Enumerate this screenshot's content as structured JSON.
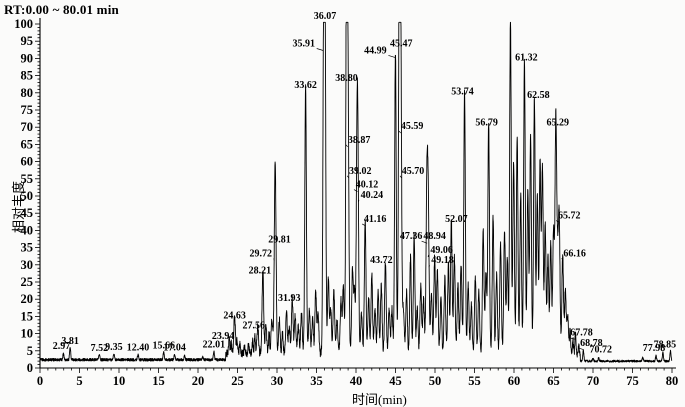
{
  "title": "RT:0.00 ~ 80.01 min",
  "x_axis": {
    "label": "时间(min)",
    "ticks": [
      0,
      5,
      10,
      15,
      20,
      25,
      30,
      35,
      40,
      45,
      50,
      55,
      60,
      65,
      70,
      75,
      80
    ]
  },
  "y_axis": {
    "label": "相对丰度",
    "ticks": [
      0,
      5,
      10,
      15,
      20,
      25,
      30,
      35,
      40,
      45,
      50,
      55,
      60,
      65,
      70,
      75,
      80,
      85,
      90,
      95,
      100
    ]
  },
  "colors": {
    "trace": "#000000",
    "text": "#000000",
    "background": "#fbfbfa"
  },
  "chart_data": {
    "type": "line",
    "title": "RT:0.00 ~ 80.01 min",
    "xlabel": "时间(min)",
    "ylabel": "相对丰度",
    "xlim": [
      0,
      80
    ],
    "ylim": [
      0,
      100
    ],
    "grid": false,
    "legend": false,
    "series_name": "total-ion-chromatogram",
    "labeled_peaks": [
      {
        "label": "2.97",
        "rt": 2.97,
        "h": 4,
        "dx": -2
      },
      {
        "label": "3.81",
        "rt": 3.81,
        "h": 5.5
      },
      {
        "label": "7.52",
        "rt": 7.52,
        "h": 3.5
      },
      {
        "label": "9.35",
        "rt": 9.35,
        "h": 3.8
      },
      {
        "label": "12.40",
        "rt": 12.4,
        "h": 3.6
      },
      {
        "label": "15.66",
        "rt": 15.66,
        "h": 4.2
      },
      {
        "label": "17.04",
        "rt": 17.04,
        "h": 3.6
      },
      {
        "label": "22.01",
        "rt": 22.01,
        "h": 4.5
      },
      {
        "label": "23.94",
        "rt": 23.94,
        "h": 7,
        "dx": -6
      },
      {
        "label": "24.63",
        "rt": 24.63,
        "h": 13
      },
      {
        "label": "27.56",
        "rt": 27.56,
        "h": 10,
        "dx": -4
      },
      {
        "label": "28.21",
        "rt": 28.21,
        "h": 26,
        "dx": -3
      },
      {
        "label": "29.72",
        "rt": 29.72,
        "h": 31,
        "dx": -14,
        "ld": 1
      },
      {
        "label": "29.81",
        "rt": 29.81,
        "h": 35,
        "dx": 4
      },
      {
        "label": "31.93",
        "rt": 31.93,
        "h": 18,
        "dx": -3
      },
      {
        "label": "33.62",
        "rt": 33.62,
        "h": 80
      },
      {
        "label": "35.91",
        "rt": 35.91,
        "h": 92,
        "dx": -20,
        "ld": 1
      },
      {
        "label": "36.07",
        "rt": 36.07,
        "h": 100
      },
      {
        "label": "38.80",
        "rt": 38.8,
        "h": 82
      },
      {
        "label": "38.87",
        "rt": 38.87,
        "h": 64,
        "dx": 12,
        "ld": 1
      },
      {
        "label": "39.02",
        "rt": 39.02,
        "h": 55,
        "dx": 12,
        "ld": 1
      },
      {
        "label": "40.12",
        "rt": 40.12,
        "h": 51,
        "dx": 10,
        "ld": 1
      },
      {
        "label": "40.24",
        "rt": 40.24,
        "h": 48,
        "dx": 14,
        "ld": 1
      },
      {
        "label": "41.16",
        "rt": 41.16,
        "h": 41,
        "dx": 10,
        "ld": 1
      },
      {
        "label": "43.72",
        "rt": 43.72,
        "h": 29,
        "dx": -4
      },
      {
        "label": "44.99",
        "rt": 44.99,
        "h": 90,
        "dx": -20,
        "ld": 1
      },
      {
        "label": "45.47",
        "rt": 45.47,
        "h": 92,
        "dx": 2
      },
      {
        "label": "45.59",
        "rt": 45.59,
        "h": 68,
        "dx": 12,
        "ld": 1
      },
      {
        "label": "45.70",
        "rt": 45.7,
        "h": 55,
        "dx": 12,
        "ld": 1
      },
      {
        "label": "47.36",
        "rt": 47.36,
        "h": 36,
        "dx": -3
      },
      {
        "label": "48.94",
        "rt": 48.94,
        "h": 36,
        "dx": 8,
        "ld": 1
      },
      {
        "label": "49.06",
        "rt": 49.06,
        "h": 32,
        "dx": 14,
        "ld": 1
      },
      {
        "label": "49.18",
        "rt": 49.18,
        "h": 29,
        "dx": 14,
        "ld": 1
      },
      {
        "label": "52.07",
        "rt": 52.07,
        "h": 41,
        "dx": 5
      },
      {
        "label": "53.74",
        "rt": 53.74,
        "h": 78,
        "dx": -2
      },
      {
        "label": "56.79",
        "rt": 56.79,
        "h": 69,
        "dx": -2
      },
      {
        "label": "61.32",
        "rt": 61.32,
        "h": 88,
        "dx": 2
      },
      {
        "label": "62.58",
        "rt": 62.58,
        "h": 77,
        "dx": 4
      },
      {
        "label": "65.29",
        "rt": 65.29,
        "h": 69,
        "dx": 2
      },
      {
        "label": "65.72",
        "rt": 65.72,
        "h": 42,
        "dx": 10,
        "ld": 1
      },
      {
        "label": "66.16",
        "rt": 66.16,
        "h": 31,
        "dx": 12,
        "ld": 1
      },
      {
        "label": "67.78",
        "rt": 67.78,
        "h": 8,
        "dx": 6,
        "ld": 1
      },
      {
        "label": "68.78",
        "rt": 68.78,
        "h": 5,
        "dx": 8,
        "ld": 1
      },
      {
        "label": "70.72",
        "rt": 70.72,
        "h": 3,
        "dx": 2
      },
      {
        "label": "77.98",
        "rt": 77.98,
        "h": 3.5,
        "dx": -2
      },
      {
        "label": "78.85",
        "rt": 78.85,
        "h": 4.5,
        "dx": 2
      }
    ],
    "unlabeled_peaks": [
      [
        18.3,
        3.2
      ],
      [
        20.6,
        2.8
      ],
      [
        24.2,
        5
      ],
      [
        24.95,
        6
      ],
      [
        25.3,
        5
      ],
      [
        25.9,
        4
      ],
      [
        26.4,
        5
      ],
      [
        26.9,
        6
      ],
      [
        27.2,
        7
      ],
      [
        28.6,
        10
      ],
      [
        29.0,
        8
      ],
      [
        29.35,
        12
      ],
      [
        30.3,
        12
      ],
      [
        30.7,
        9
      ],
      [
        31.2,
        14
      ],
      [
        31.55,
        10
      ],
      [
        32.3,
        13
      ],
      [
        32.7,
        10
      ],
      [
        33.1,
        14
      ],
      [
        34.1,
        15
      ],
      [
        34.5,
        12
      ],
      [
        34.9,
        20
      ],
      [
        35.2,
        14
      ],
      [
        36.5,
        24
      ],
      [
        36.8,
        15
      ],
      [
        37.2,
        20
      ],
      [
        37.6,
        12
      ],
      [
        38.1,
        18
      ],
      [
        38.4,
        22
      ],
      [
        39.55,
        26
      ],
      [
        39.8,
        20
      ],
      [
        40.7,
        14
      ],
      [
        41.6,
        18
      ],
      [
        42.0,
        25
      ],
      [
        42.4,
        15
      ],
      [
        42.8,
        20
      ],
      [
        43.2,
        22
      ],
      [
        44.2,
        15
      ],
      [
        44.55,
        15
      ],
      [
        46.0,
        15
      ],
      [
        46.4,
        20
      ],
      [
        46.9,
        30
      ],
      [
        47.75,
        15
      ],
      [
        48.2,
        22
      ],
      [
        48.55,
        18
      ],
      [
        49.55,
        20
      ],
      [
        49.95,
        30
      ],
      [
        50.3,
        26
      ],
      [
        50.75,
        18
      ],
      [
        51.25,
        24
      ],
      [
        51.7,
        28
      ],
      [
        52.45,
        30
      ],
      [
        52.9,
        22
      ],
      [
        53.3,
        28
      ],
      [
        54.2,
        22
      ],
      [
        54.6,
        16
      ],
      [
        55.1,
        24
      ],
      [
        55.55,
        20
      ],
      [
        56.1,
        38
      ],
      [
        56.45,
        25
      ],
      [
        57.35,
        42
      ],
      [
        57.8,
        25
      ],
      [
        58.3,
        34
      ],
      [
        58.8,
        38
      ],
      [
        59.15,
        30
      ],
      [
        59.55,
        100
      ],
      [
        59.95,
        58
      ],
      [
        60.4,
        65
      ],
      [
        60.85,
        48
      ],
      [
        61.75,
        50
      ],
      [
        62.1,
        66
      ],
      [
        62.95,
        48
      ],
      [
        63.3,
        58
      ],
      [
        63.6,
        56
      ],
      [
        63.95,
        40
      ],
      [
        64.3,
        30
      ],
      [
        64.65,
        34
      ],
      [
        65.0,
        38
      ],
      [
        65.5,
        28
      ],
      [
        66.5,
        20
      ],
      [
        66.8,
        13
      ],
      [
        67.1,
        9
      ],
      [
        67.45,
        6
      ],
      [
        68.2,
        4
      ],
      [
        70.0,
        2.8
      ],
      [
        76.3,
        3
      ],
      [
        79.8,
        5
      ]
    ]
  }
}
